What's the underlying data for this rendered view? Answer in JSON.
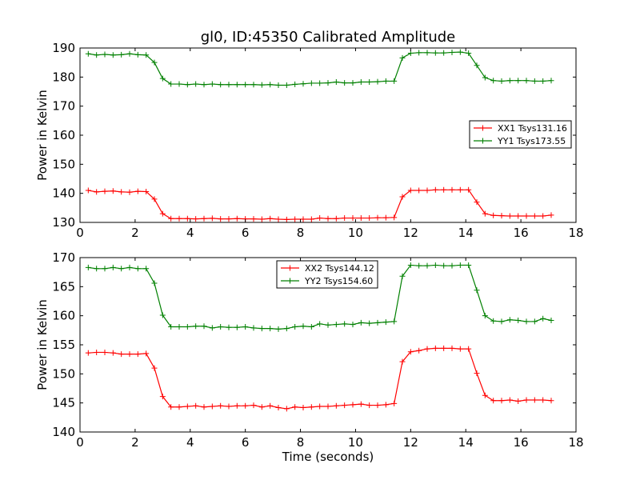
{
  "figure": {
    "title": "gl0, ID:45350 Calibrated Amplitude"
  },
  "chart_data": [
    {
      "type": "line",
      "title": "gl0, ID:45350 Calibrated Amplitude",
      "xlabel": "",
      "ylabel": "Power in Kelvin",
      "xlim": [
        0,
        18
      ],
      "ylim": [
        130,
        190
      ],
      "x_ticks": [
        0,
        2,
        4,
        6,
        8,
        10,
        12,
        14,
        16,
        18
      ],
      "y_ticks": [
        130,
        140,
        150,
        160,
        170,
        180,
        190
      ],
      "grid": false,
      "legend_position": "center-right",
      "x": [
        0.3,
        0.6,
        0.9,
        1.2,
        1.5,
        1.8,
        2.1,
        2.4,
        2.7,
        3.0,
        3.3,
        3.6,
        3.9,
        4.2,
        4.5,
        4.8,
        5.1,
        5.4,
        5.7,
        6.0,
        6.3,
        6.6,
        6.9,
        7.2,
        7.5,
        7.8,
        8.1,
        8.4,
        8.7,
        9.0,
        9.3,
        9.6,
        9.9,
        10.2,
        10.5,
        10.8,
        11.1,
        11.4,
        11.7,
        12.0,
        12.3,
        12.6,
        12.9,
        13.2,
        13.5,
        13.8,
        14.1,
        14.4,
        14.7,
        15.0,
        15.3,
        15.6,
        15.9,
        16.2,
        16.5,
        16.8,
        17.1
      ],
      "series": [
        {
          "name": "XX1 Tsys131.16",
          "color": "#ff0000",
          "values": [
            141.0,
            140.5,
            140.7,
            140.8,
            140.5,
            140.4,
            140.7,
            140.6,
            138.0,
            133.0,
            131.3,
            131.3,
            131.3,
            131.2,
            131.3,
            131.4,
            131.2,
            131.2,
            131.3,
            131.2,
            131.2,
            131.1,
            131.3,
            131.1,
            131.0,
            131.1,
            131.1,
            131.1,
            131.5,
            131.3,
            131.3,
            131.5,
            131.5,
            131.5,
            131.5,
            131.6,
            131.6,
            131.7,
            138.8,
            141.0,
            141.0,
            141.0,
            141.2,
            141.2,
            141.2,
            141.2,
            141.2,
            137.0,
            133.0,
            132.4,
            132.3,
            132.2,
            132.2,
            132.2,
            132.2,
            132.2,
            132.5
          ]
        },
        {
          "name": "YY1 Tsys173.55",
          "color": "#008000",
          "values": [
            188.0,
            187.6,
            187.8,
            187.6,
            187.7,
            188.0,
            187.7,
            187.6,
            185.0,
            179.5,
            177.6,
            177.6,
            177.4,
            177.6,
            177.4,
            177.6,
            177.4,
            177.4,
            177.4,
            177.4,
            177.4,
            177.3,
            177.4,
            177.2,
            177.2,
            177.5,
            177.7,
            177.9,
            177.9,
            178.0,
            178.3,
            178.0,
            178.0,
            178.3,
            178.3,
            178.4,
            178.6,
            178.6,
            186.6,
            188.2,
            188.4,
            188.4,
            188.3,
            188.3,
            188.5,
            188.6,
            188.2,
            184.0,
            179.8,
            178.8,
            178.6,
            178.8,
            178.8,
            178.8,
            178.6,
            178.6,
            178.8
          ]
        }
      ]
    },
    {
      "type": "line",
      "title": "",
      "xlabel": "Time (seconds)",
      "ylabel": "Power in Kelvin",
      "xlim": [
        0,
        18
      ],
      "ylim": [
        140,
        170
      ],
      "x_ticks": [
        0,
        2,
        4,
        6,
        8,
        10,
        12,
        14,
        16,
        18
      ],
      "y_ticks": [
        140,
        145,
        150,
        155,
        160,
        165,
        170
      ],
      "grid": false,
      "legend_position": "top-center",
      "x": [
        0.3,
        0.6,
        0.9,
        1.2,
        1.5,
        1.8,
        2.1,
        2.4,
        2.7,
        3.0,
        3.3,
        3.6,
        3.9,
        4.2,
        4.5,
        4.8,
        5.1,
        5.4,
        5.7,
        6.0,
        6.3,
        6.6,
        6.9,
        7.2,
        7.5,
        7.8,
        8.1,
        8.4,
        8.7,
        9.0,
        9.3,
        9.6,
        9.9,
        10.2,
        10.5,
        10.8,
        11.1,
        11.4,
        11.7,
        12.0,
        12.3,
        12.6,
        12.9,
        13.2,
        13.5,
        13.8,
        14.1,
        14.4,
        14.7,
        15.0,
        15.3,
        15.6,
        15.9,
        16.2,
        16.5,
        16.8,
        17.1
      ],
      "series": [
        {
          "name": "XX2 Tsys144.12",
          "color": "#ff0000",
          "values": [
            153.6,
            153.7,
            153.7,
            153.6,
            153.4,
            153.4,
            153.4,
            153.5,
            151.0,
            146.1,
            144.3,
            144.3,
            144.4,
            144.5,
            144.3,
            144.4,
            144.5,
            144.4,
            144.5,
            144.5,
            144.6,
            144.3,
            144.5,
            144.2,
            144.0,
            144.3,
            144.2,
            144.3,
            144.4,
            144.4,
            144.5,
            144.6,
            144.7,
            144.8,
            144.6,
            144.6,
            144.7,
            144.9,
            152.1,
            153.8,
            154.0,
            154.3,
            154.4,
            154.4,
            154.4,
            154.3,
            154.3,
            150.1,
            146.3,
            145.4,
            145.4,
            145.5,
            145.3,
            145.5,
            145.5,
            145.5,
            145.4
          ]
        },
        {
          "name": "YY2 Tsys154.60",
          "color": "#008000",
          "values": [
            168.3,
            168.1,
            168.1,
            168.3,
            168.1,
            168.3,
            168.1,
            168.1,
            165.6,
            160.1,
            158.1,
            158.1,
            158.1,
            158.2,
            158.2,
            157.9,
            158.1,
            158.0,
            158.0,
            158.1,
            157.9,
            157.8,
            157.8,
            157.7,
            157.8,
            158.1,
            158.2,
            158.1,
            158.6,
            158.4,
            158.5,
            158.6,
            158.5,
            158.8,
            158.7,
            158.8,
            158.9,
            159.0,
            166.8,
            168.7,
            168.6,
            168.6,
            168.7,
            168.6,
            168.6,
            168.7,
            168.7,
            164.4,
            160.0,
            159.1,
            159.0,
            159.3,
            159.2,
            159.0,
            159.0,
            159.5,
            159.2
          ]
        }
      ]
    }
  ]
}
